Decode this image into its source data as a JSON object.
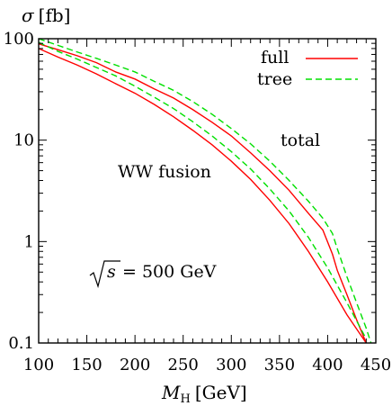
{
  "chart_data": {
    "type": "line",
    "title": "",
    "xlabel_main": "M",
    "xlabel_sub": "H",
    "xlabel_unit": "[GeV]",
    "ylabel": "σ [fb]",
    "xlim": [
      100,
      450
    ],
    "ylim": [
      0.1,
      100
    ],
    "yscale": "log",
    "xticks": [
      100,
      150,
      200,
      250,
      300,
      350,
      400,
      450
    ],
    "xtick_labels": [
      "100",
      "150",
      "200",
      "250",
      "300",
      "350",
      "400",
      "450"
    ],
    "yticks": [
      0.1,
      1,
      10,
      100
    ],
    "ytick_labels": [
      "0.1",
      "1",
      "10",
      "100"
    ],
    "grid": false,
    "legend": {
      "position": "top-right",
      "entries": [
        {
          "label": "full",
          "color": "#ff0000",
          "dash": "solid"
        },
        {
          "label": "tree",
          "color": "#00e000",
          "dash": "dashed"
        }
      ]
    },
    "annotations": {
      "total": "total",
      "ww_fusion": "WW fusion",
      "sqrt_s_symbol": "s",
      "sqrt_s_value": "= 500 GeV"
    },
    "series": [
      {
        "name": "full",
        "group": "total",
        "color": "#ff0000",
        "dash": "solid",
        "x": [
          100,
          120,
          140,
          160,
          180,
          200,
          220,
          240,
          260,
          280,
          300,
          320,
          340,
          360,
          380,
          395,
          405,
          410,
          420,
          430,
          440
        ],
        "y": [
          89,
          78,
          68,
          58,
          47,
          40,
          32,
          26,
          20,
          15,
          11,
          7.5,
          5.0,
          3.2,
          1.9,
          1.3,
          0.75,
          0.52,
          0.3,
          0.17,
          0.1
        ]
      },
      {
        "name": "tree",
        "group": "total",
        "color": "#00e000",
        "dash": "dashed",
        "x": [
          100,
          120,
          140,
          160,
          180,
          200,
          220,
          240,
          260,
          280,
          300,
          320,
          340,
          360,
          380,
          395,
          405,
          410,
          420,
          430,
          440,
          445
        ],
        "y": [
          100,
          86,
          74,
          64,
          55,
          47,
          38,
          31,
          24,
          18,
          13,
          9.2,
          6.2,
          4.0,
          2.5,
          1.7,
          1.2,
          0.85,
          0.45,
          0.25,
          0.14,
          0.1
        ]
      },
      {
        "name": "full",
        "group": "WW fusion",
        "color": "#ff0000",
        "dash": "solid",
        "x": [
          100,
          120,
          140,
          160,
          180,
          200,
          220,
          240,
          260,
          280,
          300,
          320,
          340,
          360,
          380,
          400,
          420,
          440
        ],
        "y": [
          80,
          66,
          55,
          45,
          36,
          29,
          22.5,
          17,
          12.5,
          9.0,
          6.2,
          4.1,
          2.55,
          1.5,
          0.8,
          0.4,
          0.19,
          0.1
        ]
      },
      {
        "name": "tree",
        "group": "WW fusion",
        "color": "#00e000",
        "dash": "dashed",
        "x": [
          100,
          120,
          140,
          160,
          180,
          200,
          220,
          240,
          260,
          280,
          300,
          320,
          340,
          360,
          380,
          400,
          420,
          440
        ],
        "y": [
          92,
          75,
          63,
          52,
          43,
          34,
          26.5,
          20.5,
          15.2,
          11.0,
          7.7,
          5.2,
          3.3,
          2.0,
          1.1,
          0.55,
          0.25,
          0.11
        ]
      }
    ]
  }
}
